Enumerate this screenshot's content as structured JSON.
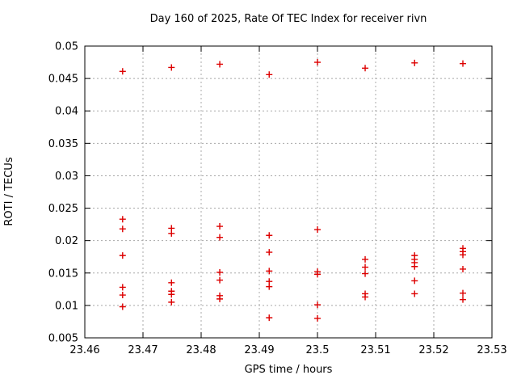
{
  "window": {
    "background": "#ffffff"
  },
  "colors": {
    "marker": "#dd0000",
    "grid": "#a8a8a8",
    "axis": "#000000",
    "text": "#000000",
    "background": "#ffffff"
  },
  "chart_data": {
    "type": "scatter",
    "title": "Day 160 of 2025, Rate Of TEC Index for receiver rivn",
    "xlabel": "GPS time / hours",
    "ylabel": "ROTI / TECUs",
    "xlim": [
      23.46,
      23.53
    ],
    "ylim": [
      0.005,
      0.05
    ],
    "grid": true,
    "legend": false,
    "marker_shape": "plus",
    "x_ticks": {
      "values": [
        23.46,
        23.47,
        23.48,
        23.49,
        23.5,
        23.51,
        23.52,
        23.53
      ],
      "labels": [
        "23.46",
        "23.47",
        "23.48",
        "23.49",
        "23.5",
        "23.51",
        "23.52",
        "23.53"
      ]
    },
    "y_ticks": {
      "values": [
        0.005,
        0.01,
        0.015,
        0.02,
        0.025,
        0.03,
        0.035,
        0.04,
        0.045,
        0.05
      ],
      "labels": [
        "0.005",
        "0.01",
        "0.015",
        "0.02",
        "0.025",
        "0.03",
        "0.035",
        "0.04",
        "0.045",
        "0.05"
      ]
    },
    "series": [
      {
        "name": "roti",
        "color": "#dd0000",
        "marker": "plus",
        "points": [
          [
            23.4665,
            0.0461
          ],
          [
            23.4665,
            0.0233
          ],
          [
            23.4665,
            0.0218
          ],
          [
            23.4665,
            0.0177
          ],
          [
            23.4665,
            0.0128
          ],
          [
            23.4665,
            0.0116
          ],
          [
            23.4665,
            0.0098
          ],
          [
            23.4749,
            0.0467
          ],
          [
            23.4749,
            0.0219
          ],
          [
            23.4749,
            0.0211
          ],
          [
            23.4749,
            0.0135
          ],
          [
            23.4749,
            0.0122
          ],
          [
            23.4749,
            0.0117
          ],
          [
            23.4749,
            0.0105
          ],
          [
            23.4832,
            0.0472
          ],
          [
            23.4832,
            0.0222
          ],
          [
            23.4832,
            0.0205
          ],
          [
            23.4832,
            0.0151
          ],
          [
            23.4832,
            0.0139
          ],
          [
            23.4832,
            0.0115
          ],
          [
            23.4832,
            0.011
          ],
          [
            23.4917,
            0.0456
          ],
          [
            23.4917,
            0.0208
          ],
          [
            23.4917,
            0.0182
          ],
          [
            23.4917,
            0.0153
          ],
          [
            23.4917,
            0.0137
          ],
          [
            23.4917,
            0.0129
          ],
          [
            23.4917,
            0.0081
          ],
          [
            23.5,
            0.0475
          ],
          [
            23.5,
            0.0217
          ],
          [
            23.5,
            0.0152
          ],
          [
            23.5,
            0.0148
          ],
          [
            23.5,
            0.0101
          ],
          [
            23.5,
            0.008
          ],
          [
            23.5082,
            0.0466
          ],
          [
            23.5082,
            0.0171
          ],
          [
            23.5082,
            0.0159
          ],
          [
            23.5082,
            0.0149
          ],
          [
            23.5082,
            0.0118
          ],
          [
            23.5082,
            0.0113
          ],
          [
            23.5167,
            0.0474
          ],
          [
            23.5167,
            0.0177
          ],
          [
            23.5167,
            0.0171
          ],
          [
            23.5167,
            0.0166
          ],
          [
            23.5167,
            0.016
          ],
          [
            23.5167,
            0.0138
          ],
          [
            23.5167,
            0.0118
          ],
          [
            23.525,
            0.0473
          ],
          [
            23.525,
            0.0188
          ],
          [
            23.525,
            0.0183
          ],
          [
            23.525,
            0.0178
          ],
          [
            23.525,
            0.0156
          ],
          [
            23.525,
            0.0119
          ],
          [
            23.525,
            0.0109
          ]
        ]
      }
    ]
  }
}
